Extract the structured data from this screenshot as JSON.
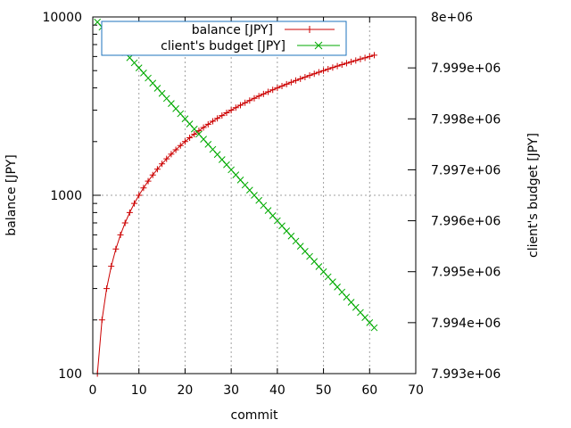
{
  "chart_data": {
    "type": "line",
    "xlabel": "commit",
    "ylabel": "balance [JPY]",
    "y2label": "client's budget [JPY]",
    "xlim": [
      0,
      70
    ],
    "ylim": [
      100,
      10000
    ],
    "y_scale": "log",
    "y2lim": [
      7993000,
      8000000
    ],
    "grid": true,
    "legend_position": "top-center",
    "x_ticks": [
      "0",
      "10",
      "20",
      "30",
      "40",
      "50",
      "60",
      "70"
    ],
    "y_ticks": [
      "100",
      "1000",
      "10000"
    ],
    "y2_ticks": [
      "7.993e+06",
      "7.994e+06",
      "7.995e+06",
      "7.996e+06",
      "7.997e+06",
      "7.998e+06",
      "7.999e+06",
      "8e+06"
    ],
    "series": [
      {
        "name": "balance [JPY]",
        "axis": "y",
        "color": "#cc0000",
        "marker": "plus",
        "x": [
          1,
          2,
          3,
          4,
          5,
          6,
          7,
          8,
          9,
          10,
          11,
          12,
          13,
          14,
          15,
          16,
          17,
          18,
          19,
          20,
          21,
          22,
          23,
          24,
          25,
          26,
          27,
          28,
          29,
          30,
          31,
          32,
          33,
          34,
          35,
          36,
          37,
          38,
          39,
          40,
          41,
          42,
          43,
          44,
          45,
          46,
          47,
          48,
          49,
          50,
          51,
          52,
          53,
          54,
          55,
          56,
          57,
          58,
          59,
          60,
          61
        ],
        "values": [
          100,
          200,
          300,
          400,
          500,
          600,
          700,
          800,
          900,
          1000,
          1100,
          1200,
          1300,
          1400,
          1500,
          1600,
          1700,
          1800,
          1900,
          2000,
          2100,
          2200,
          2300,
          2400,
          2500,
          2600,
          2700,
          2800,
          2900,
          3000,
          3100,
          3200,
          3300,
          3400,
          3500,
          3600,
          3700,
          3800,
          3900,
          4000,
          4100,
          4200,
          4300,
          4400,
          4500,
          4600,
          4700,
          4800,
          4900,
          5000,
          5100,
          5200,
          5300,
          5400,
          5500,
          5600,
          5700,
          5800,
          5900,
          6000,
          6100
        ]
      },
      {
        "name": "client's budget [JPY]",
        "axis": "y2",
        "color": "#00aa00",
        "marker": "cross",
        "x": [
          1,
          2,
          3,
          4,
          5,
          6,
          7,
          8,
          9,
          10,
          11,
          12,
          13,
          14,
          15,
          16,
          17,
          18,
          19,
          20,
          21,
          22,
          23,
          24,
          25,
          26,
          27,
          28,
          29,
          30,
          31,
          32,
          33,
          34,
          35,
          36,
          37,
          38,
          39,
          40,
          41,
          42,
          43,
          44,
          45,
          46,
          47,
          48,
          49,
          50,
          51,
          52,
          53,
          54,
          55,
          56,
          57,
          58,
          59,
          60,
          61
        ],
        "values": [
          7999900,
          7999800,
          7999700,
          7999600,
          7999500,
          7999400,
          7999300,
          7999200,
          7999100,
          7999000,
          7998900,
          7998800,
          7998700,
          7998600,
          7998500,
          7998400,
          7998300,
          7998200,
          7998100,
          7998000,
          7997900,
          7997800,
          7997700,
          7997600,
          7997500,
          7997400,
          7997300,
          7997200,
          7997100,
          7997000,
          7996900,
          7996800,
          7996700,
          7996600,
          7996500,
          7996400,
          7996300,
          7996200,
          7996100,
          7996000,
          7995900,
          7995800,
          7995700,
          7995600,
          7995500,
          7995400,
          7995300,
          7995200,
          7995100,
          7995000,
          7994900,
          7994800,
          7994700,
          7994600,
          7994500,
          7994400,
          7994300,
          7994200,
          7994100,
          7994000,
          7993900
        ]
      }
    ]
  }
}
